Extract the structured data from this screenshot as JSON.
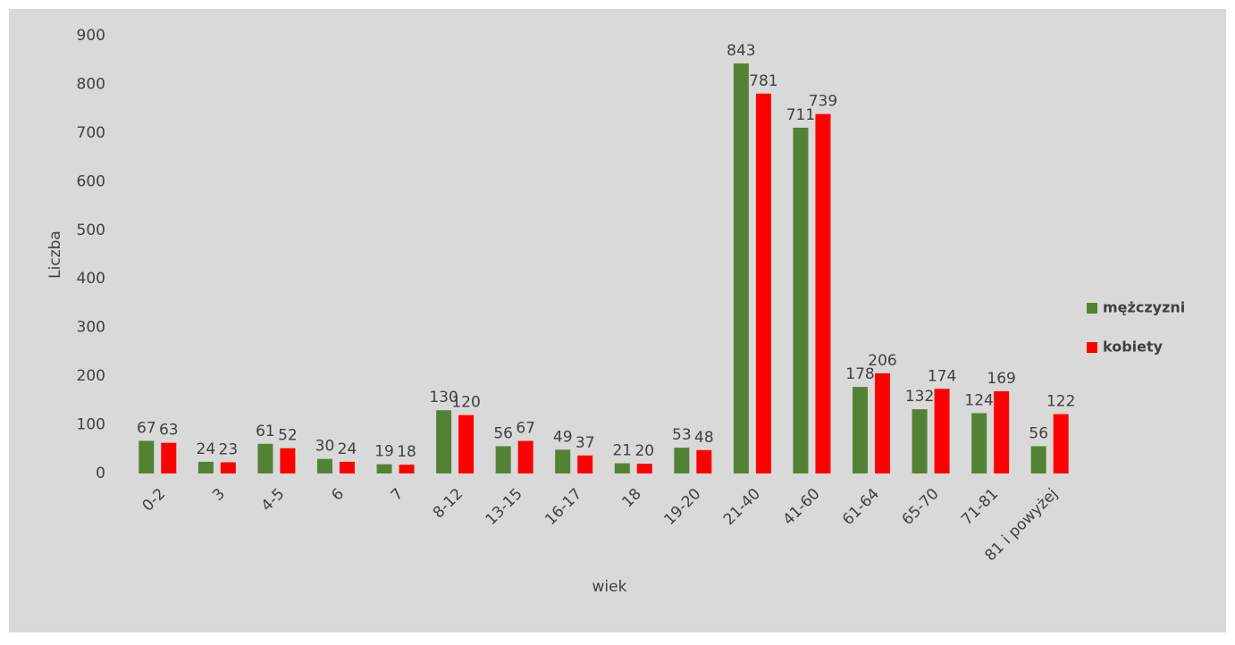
{
  "chart_data": {
    "type": "bar",
    "x_label": "wiek",
    "y_label": "Liczba",
    "categories": [
      "0-2",
      "3",
      "4-5",
      "6",
      "7",
      "8-12",
      "13-15",
      "16-17",
      "18",
      "19-20",
      "21-40",
      "41-60",
      "61-64",
      "65-70",
      "71-81",
      "81 i powyżej"
    ],
    "series": [
      {
        "name": "mężczyzni",
        "color": "#548235",
        "values": [
          67,
          24,
          61,
          30,
          19,
          130,
          56,
          49,
          21,
          53,
          843,
          711,
          178,
          132,
          124,
          56
        ]
      },
      {
        "name": "kobiety",
        "color": "#ff0000",
        "values": [
          63,
          23,
          52,
          24,
          18,
          120,
          67,
          37,
          20,
          48,
          781,
          739,
          206,
          174,
          169,
          122
        ]
      }
    ],
    "ylim": [
      0,
      900
    ],
    "yticks": [
      0,
      100,
      200,
      300,
      400,
      500,
      600,
      700,
      800,
      900
    ],
    "grid": false,
    "legend": "right"
  }
}
